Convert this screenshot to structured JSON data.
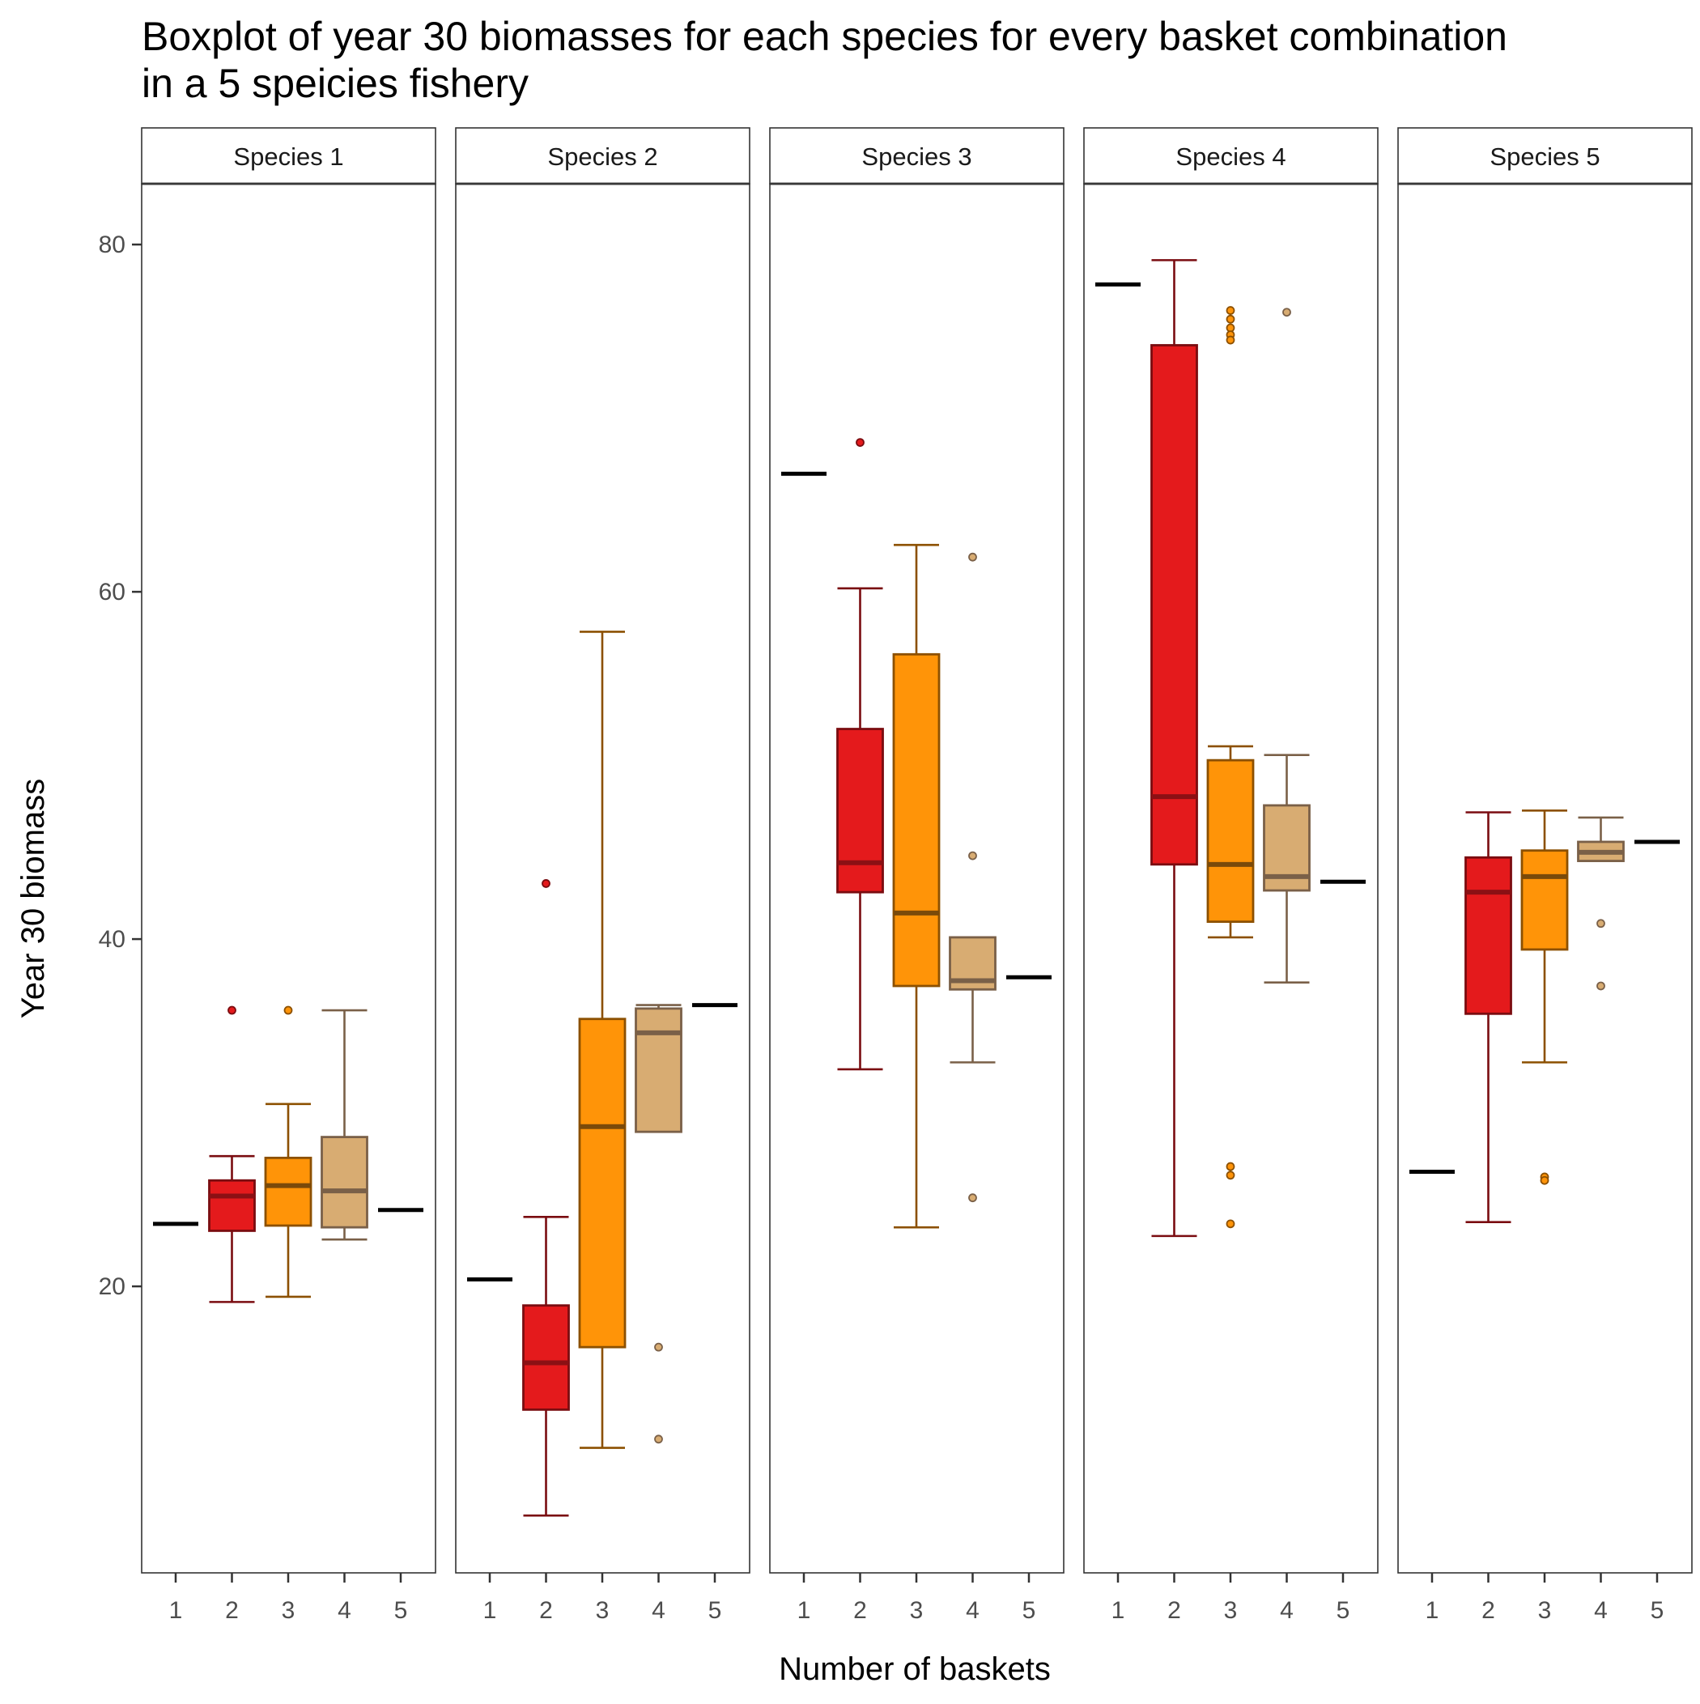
{
  "chart_data": {
    "type": "boxplot",
    "title_lines": [
      "Boxplot of year 30 biomasses for each species for every basket combination",
      "in a 5 speicies fishery"
    ],
    "xlabel": "Number of baskets",
    "ylabel": "Year 30 biomass",
    "x_categories": [
      "1",
      "2",
      "3",
      "4",
      "5"
    ],
    "y_ticks": [
      20,
      40,
      60,
      80
    ],
    "ylim": [
      3.5,
      83.5
    ],
    "colors": {
      "1": {
        "fill": "#000000",
        "line": "#000000"
      },
      "2": {
        "fill": "#E41A1C",
        "line": "#7A0C10",
        "median": "#8B1014"
      },
      "3": {
        "fill": "#FF9408",
        "line": "#8C5000",
        "median": "#7A4A0A"
      },
      "4": {
        "fill": "#D8AC72",
        "line": "#7A6048",
        "median": "#7A6048"
      },
      "5": {
        "fill": "#000000",
        "line": "#000000"
      }
    },
    "panels": [
      {
        "label": "Species 1",
        "boxes": [
          {
            "basket": "1",
            "single": 23.6
          },
          {
            "basket": "2",
            "q1": 23.2,
            "median": 25.2,
            "q3": 26.1,
            "whisker_low": 19.1,
            "whisker_high": 27.5,
            "outliers": [
              35.9
            ]
          },
          {
            "basket": "3",
            "q1": 23.5,
            "median": 25.8,
            "q3": 27.4,
            "whisker_low": 19.4,
            "whisker_high": 30.5,
            "outliers": [
              35.9
            ]
          },
          {
            "basket": "4",
            "q1": 23.4,
            "median": 25.5,
            "q3": 28.6,
            "whisker_low": 22.7,
            "whisker_high": 35.9,
            "outliers": []
          },
          {
            "basket": "5",
            "single": 24.4
          }
        ]
      },
      {
        "label": "Species 2",
        "boxes": [
          {
            "basket": "1",
            "single": 20.4
          },
          {
            "basket": "2",
            "q1": 12.9,
            "median": 15.6,
            "q3": 18.9,
            "whisker_low": 6.8,
            "whisker_high": 24.0,
            "outliers": [
              43.2
            ]
          },
          {
            "basket": "3",
            "q1": 16.5,
            "median": 29.2,
            "q3": 35.4,
            "whisker_low": 10.7,
            "whisker_high": 57.7,
            "outliers": []
          },
          {
            "basket": "4",
            "q1": 28.9,
            "median": 34.6,
            "q3": 36.0,
            "whisker_low": 28.9,
            "whisker_high": 36.2,
            "outliers": [
              16.5,
              11.2
            ]
          },
          {
            "basket": "5",
            "single": 36.2
          }
        ]
      },
      {
        "label": "Species 3",
        "boxes": [
          {
            "basket": "1",
            "single": 66.8
          },
          {
            "basket": "2",
            "q1": 42.7,
            "median": 44.4,
            "q3": 52.1,
            "whisker_low": 32.5,
            "whisker_high": 60.2,
            "outliers": [
              68.6
            ]
          },
          {
            "basket": "3",
            "q1": 37.3,
            "median": 41.5,
            "q3": 56.4,
            "whisker_low": 23.4,
            "whisker_high": 62.7,
            "outliers": []
          },
          {
            "basket": "4",
            "q1": 37.1,
            "median": 37.6,
            "q3": 40.1,
            "whisker_low": 32.9,
            "whisker_high": 40.1,
            "outliers": [
              62.0,
              44.8,
              25.1
            ]
          },
          {
            "basket": "5",
            "single": 37.8
          }
        ]
      },
      {
        "label": "Species 4",
        "boxes": [
          {
            "basket": "1",
            "single": 77.7
          },
          {
            "basket": "2",
            "q1": 44.3,
            "median": 48.2,
            "q3": 74.2,
            "whisker_low": 22.9,
            "whisker_high": 79.1,
            "outliers": []
          },
          {
            "basket": "3",
            "q1": 41.0,
            "median": 44.3,
            "q3": 50.3,
            "whisker_low": 40.1,
            "whisker_high": 51.1,
            "outliers": [
              76.2,
              75.7,
              75.2,
              74.8,
              74.5,
              26.9,
              26.4,
              23.6
            ]
          },
          {
            "basket": "4",
            "q1": 42.8,
            "median": 43.6,
            "q3": 47.7,
            "whisker_low": 37.5,
            "whisker_high": 50.6,
            "outliers": [
              76.1
            ]
          },
          {
            "basket": "5",
            "single": 43.3
          }
        ]
      },
      {
        "label": "Species 5",
        "boxes": [
          {
            "basket": "1",
            "single": 26.6
          },
          {
            "basket": "2",
            "q1": 35.7,
            "median": 42.7,
            "q3": 44.7,
            "whisker_low": 23.7,
            "whisker_high": 47.3,
            "outliers": []
          },
          {
            "basket": "3",
            "q1": 39.4,
            "median": 43.6,
            "q3": 45.1,
            "whisker_low": 32.9,
            "whisker_high": 47.4,
            "outliers": [
              26.3,
              26.1
            ]
          },
          {
            "basket": "4",
            "q1": 44.5,
            "median": 45.0,
            "q3": 45.6,
            "whisker_low": 44.5,
            "whisker_high": 47.0,
            "outliers": [
              40.9,
              37.3
            ]
          },
          {
            "basket": "5",
            "single": 45.6
          }
        ]
      }
    ]
  }
}
